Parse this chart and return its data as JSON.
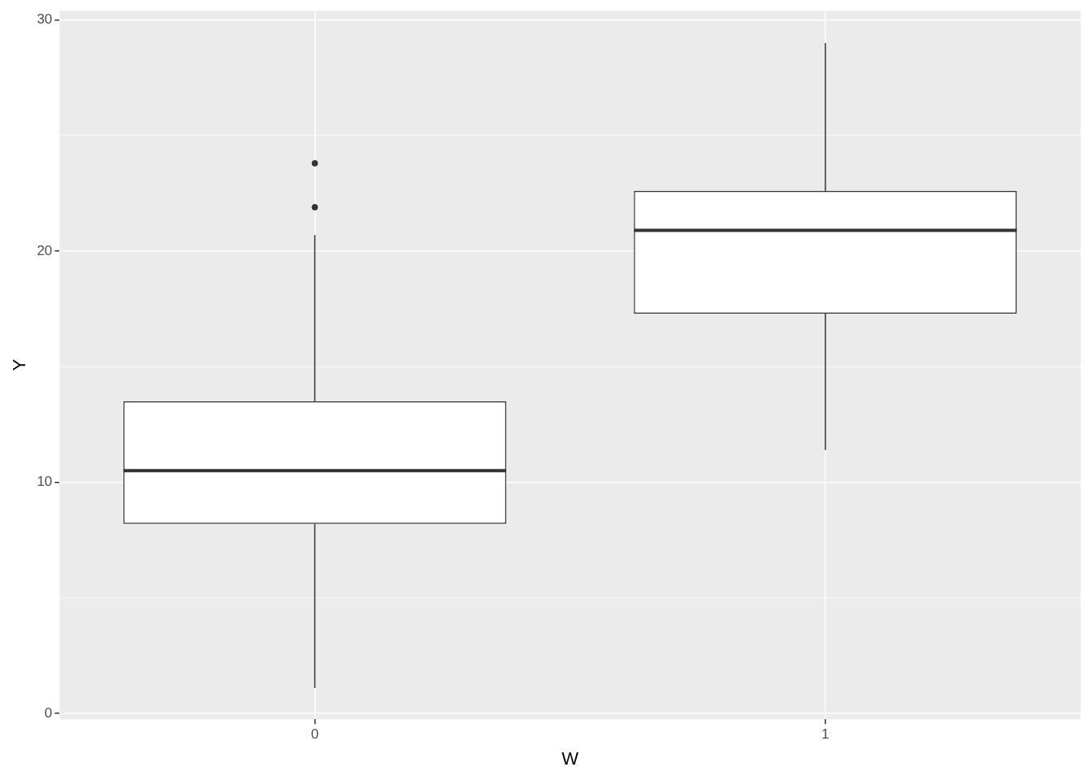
{
  "chart_data": {
    "type": "box",
    "xlabel": "W",
    "ylabel": "Y",
    "categories": [
      "0",
      "1"
    ],
    "boxes": [
      {
        "low": 1.1,
        "q1": 8.2,
        "median": 10.5,
        "q3": 13.5,
        "high": 20.7,
        "outliers": [
          21.9,
          23.8
        ]
      },
      {
        "low": 11.4,
        "q1": 17.3,
        "median": 20.9,
        "q3": 22.6,
        "high": 29.0
      }
    ],
    "ylim": [
      -0.25,
      30.4
    ],
    "yticks": [
      0,
      10,
      20,
      30
    ],
    "grid": true
  }
}
